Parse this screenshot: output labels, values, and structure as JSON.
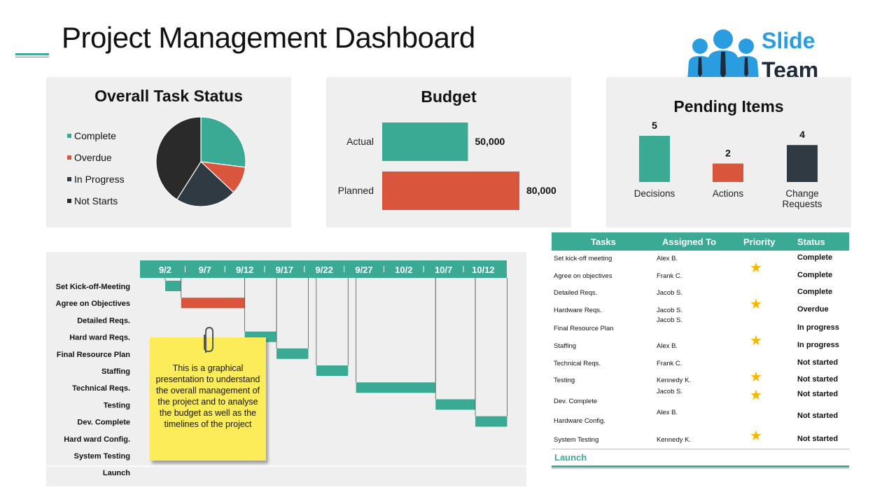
{
  "page": {
    "title": "Project Management Dashboard"
  },
  "logo": {
    "word1": "Slide",
    "word2": "Team"
  },
  "colors": {
    "teal": "#3aaa94",
    "red": "#d9553b",
    "dark": "#2f3a42",
    "black": "#2a2a2a",
    "star": "#f5b800"
  },
  "chart_data": [
    {
      "type": "pie",
      "title": "Overall Task Status",
      "categories": [
        "Complete",
        "Overdue",
        "In Progress",
        "Not Starts"
      ],
      "values": [
        27,
        10,
        22,
        41
      ],
      "colors": [
        "#3aaa94",
        "#d9553b",
        "#2f3a42",
        "#2a2a2a"
      ],
      "legend": "left"
    },
    {
      "type": "bar",
      "orientation": "horizontal",
      "title": "Budget",
      "categories": [
        "Actual",
        "Planned"
      ],
      "values": [
        50000,
        80000
      ],
      "value_labels": [
        "50,000",
        "80,000"
      ],
      "colors": [
        "#3aaa94",
        "#d9553b"
      ],
      "xlim": [
        0,
        80000
      ]
    },
    {
      "type": "bar",
      "title": "Pending Items",
      "categories": [
        "Decisions",
        "Actions",
        "Change Requests"
      ],
      "category_lines": [
        [
          "Decisions"
        ],
        [
          "Actions"
        ],
        [
          "Change",
          "Requests"
        ]
      ],
      "values": [
        5,
        2,
        4
      ],
      "value_labels": [
        "5",
        "2",
        "4"
      ],
      "colors": [
        "#3aaa94",
        "#d9553b",
        "#2f3a42"
      ],
      "ylim": [
        0,
        5
      ]
    },
    {
      "type": "gantt",
      "x_ticks": [
        "9/2",
        "9/7",
        "9/12",
        "9/17",
        "9/22",
        "9/27",
        "10/2",
        "10/7",
        "10/12"
      ],
      "tasks": [
        {
          "name": "Set Kick-off-Meeting",
          "start": "9/2",
          "end": "9/4",
          "color": "#3aaa94"
        },
        {
          "name": "Agree on Objectives",
          "start": "9/4",
          "end": "9/12",
          "color": "#d9553b"
        },
        {
          "name": "Detailed Reqs.",
          "start": "",
          "end": "",
          "color": "#3aaa94"
        },
        {
          "name": "Hard ward Reqs.",
          "start": "9/12",
          "end": "9/16",
          "color": "#3aaa94"
        },
        {
          "name": "Final Resource Plan",
          "start": "9/16",
          "end": "9/20",
          "color": "#3aaa94"
        },
        {
          "name": "Staffing",
          "start": "9/21",
          "end": "9/25",
          "color": "#3aaa94"
        },
        {
          "name": "Technical Reqs.",
          "start": "9/26",
          "end": "10/6",
          "color": "#3aaa94"
        },
        {
          "name": "Testing",
          "start": "10/6",
          "end": "10/11",
          "color": "#3aaa94"
        },
        {
          "name": "Dev. Complete",
          "start": "10/11",
          "end": "10/15",
          "color": "#3aaa94"
        },
        {
          "name": "Hard ward Config.",
          "start": "",
          "end": "",
          "color": "#3aaa94"
        },
        {
          "name": "System Testing",
          "start": "",
          "end": "",
          "color": "#3aaa94"
        },
        {
          "name": "Launch",
          "start": "",
          "end": "",
          "color": "#3aaa94"
        }
      ]
    }
  ],
  "sticky_note": {
    "text": "This is a graphical presentation to understand the overall management of the project and to analyse the budget as well as the timelines of the project"
  },
  "table": {
    "headers": {
      "tasks": "Tasks",
      "assigned": "Assigned To",
      "priority": "Priority",
      "status": "Status"
    },
    "rows": [
      {
        "task": "Set kick-off meeting",
        "assigned": "Alex B.",
        "status": "Complete"
      },
      {
        "task": "Agree on objectives",
        "assigned": "Frank C.",
        "status": "Complete"
      },
      {
        "task": "Detailed Reqs.",
        "assigned": "Jacob S.",
        "status": "Complete"
      },
      {
        "task": "Hardware Reqs.",
        "assigned": "Jacob S.",
        "status": "Overdue"
      },
      {
        "task": "Final Resource Plan",
        "assigned": "Jacob S.",
        "status": "In progress"
      },
      {
        "task": "Staffing",
        "assigned": "Alex B.",
        "status": "In progress"
      },
      {
        "task": "Technical Reqs.",
        "assigned": "Frank C.",
        "status": "Not started"
      },
      {
        "task": "Testing",
        "assigned": "Kennedy K.",
        "status": "Not started"
      },
      {
        "task": "Dev. Complete",
        "assigned": "Jacob S.",
        "status": "Not started"
      },
      {
        "task": "Hardware Config.",
        "assigned": "Alex B.",
        "status": "Not started"
      },
      {
        "task": "System Testing",
        "assigned": "Kennedy K.",
        "status": "Not started"
      }
    ],
    "star_count": 6,
    "launch": "Launch"
  }
}
